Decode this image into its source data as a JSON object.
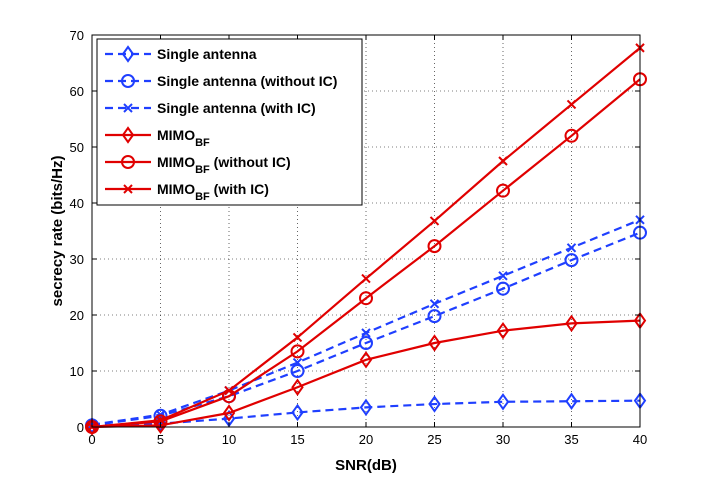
{
  "chart_data": {
    "type": "line",
    "title": "",
    "xlabel": "SNR(dB)",
    "ylabel": "secrecy rate (bits/Hz)",
    "x": [
      0,
      5,
      10,
      15,
      20,
      25,
      30,
      35,
      40
    ],
    "xlim": [
      0,
      40
    ],
    "ylim": [
      0,
      70
    ],
    "xticks": [
      0,
      5,
      10,
      15,
      20,
      25,
      30,
      35,
      40
    ],
    "yticks": [
      0,
      10,
      20,
      30,
      40,
      50,
      60,
      70
    ],
    "grid": true,
    "legend_position": "top-left",
    "series": [
      {
        "name": "Single antenna",
        "name_main": "Single antenna",
        "name_sub": "",
        "name_suffix": "",
        "color": "#1f3fff",
        "dash": true,
        "marker": "diamond",
        "values": [
          0.2,
          0.6,
          1.5,
          2.6,
          3.5,
          4.1,
          4.5,
          4.6,
          4.7
        ]
      },
      {
        "name": "Single antenna (without IC)",
        "name_main": "Single antenna (without IC)",
        "name_sub": "",
        "name_suffix": "",
        "color": "#1f3fff",
        "dash": true,
        "marker": "circle",
        "values": [
          0.3,
          2.0,
          5.5,
          10.0,
          15.0,
          19.8,
          24.7,
          29.8,
          34.7
        ]
      },
      {
        "name": "Single antenna (with IC)",
        "name_main": "Single antenna (with IC)",
        "name_sub": "",
        "name_suffix": "",
        "color": "#1f3fff",
        "dash": true,
        "marker": "x",
        "values": [
          0.4,
          2.2,
          6.5,
          11.5,
          16.8,
          22.0,
          27.0,
          32.0,
          37.0
        ]
      },
      {
        "name": "MIMO_BF",
        "name_main": "MIMO",
        "name_sub": "BF",
        "name_suffix": "",
        "color": "#e00000",
        "dash": false,
        "marker": "diamond",
        "values": [
          0.0,
          0.3,
          2.5,
          7.1,
          12.0,
          15.0,
          17.2,
          18.5,
          19.0
        ]
      },
      {
        "name": "MIMO_BF (without IC)",
        "name_main": "MIMO",
        "name_sub": "BF",
        "name_suffix": " (without IC)",
        "color": "#e00000",
        "dash": false,
        "marker": "circle",
        "values": [
          0.0,
          1.0,
          5.5,
          13.5,
          23.0,
          32.3,
          42.2,
          52.0,
          62.1
        ]
      },
      {
        "name": "MIMO_BF (with IC)",
        "name_main": "MIMO",
        "name_sub": "BF",
        "name_suffix": " (with IC)",
        "color": "#e00000",
        "dash": false,
        "marker": "x",
        "values": [
          0.0,
          1.2,
          6.5,
          16.0,
          26.5,
          36.8,
          47.5,
          57.6,
          67.7
        ]
      }
    ]
  }
}
